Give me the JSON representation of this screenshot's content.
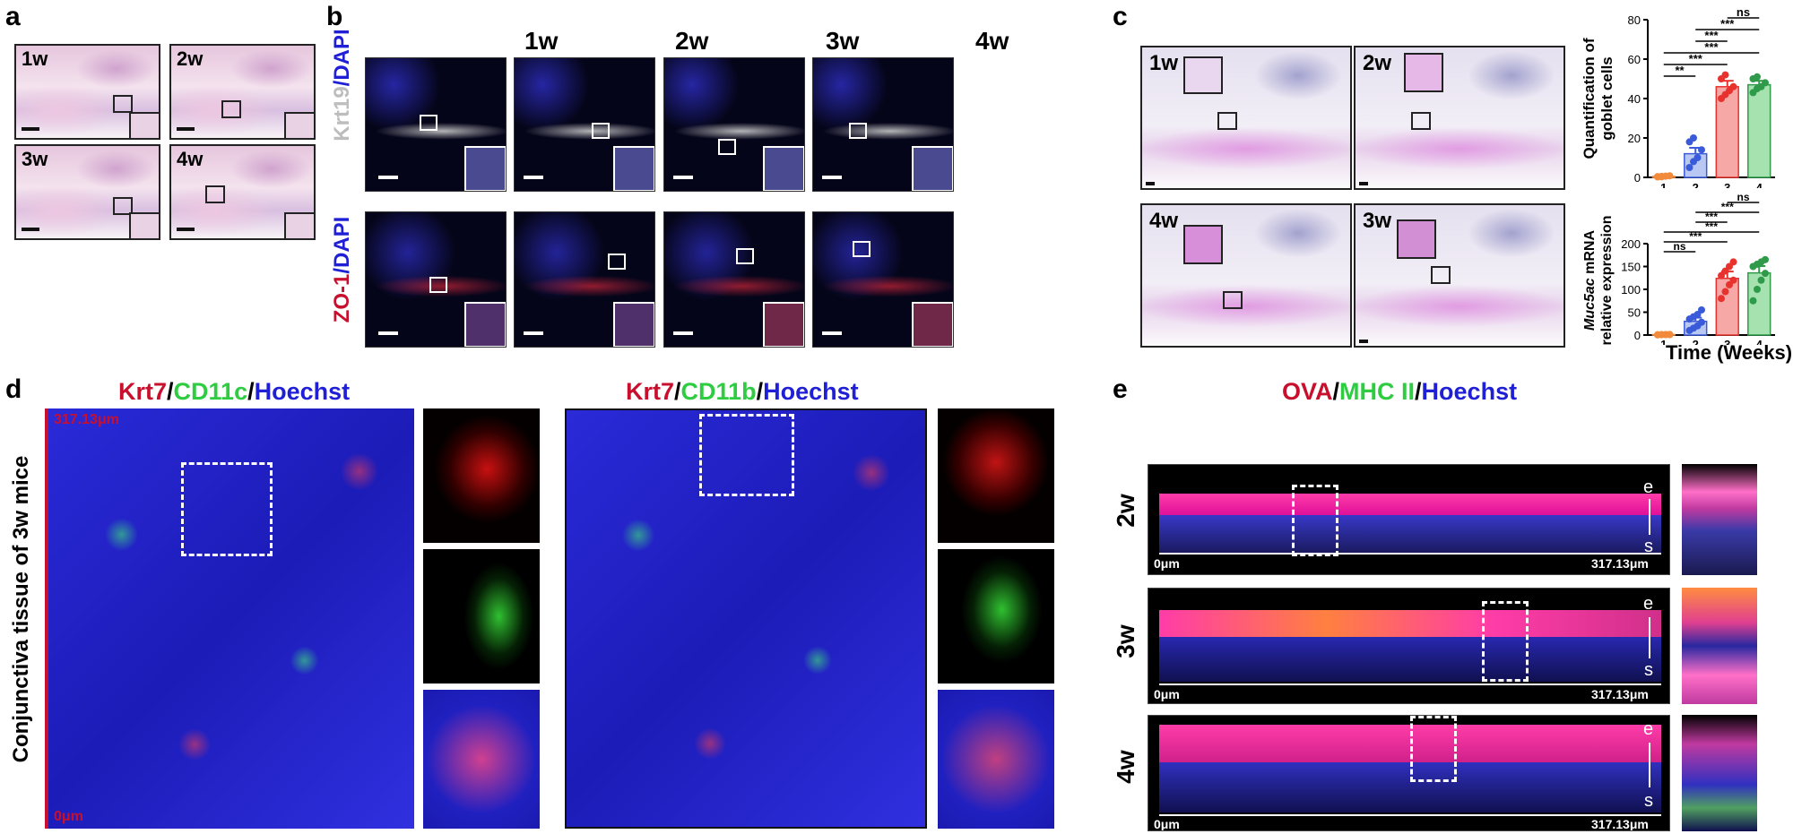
{
  "panel_a": {
    "label": "a",
    "tiles": [
      "1w",
      "2w",
      "3w",
      "4w"
    ]
  },
  "panel_b": {
    "label": "b",
    "columns": [
      "1w",
      "2w",
      "3w",
      "4w"
    ],
    "row1_stain": {
      "part1": "Krt19",
      "sep": "/",
      "part2": "DAPI"
    },
    "row2_stain": {
      "part1": "ZO-1",
      "sep": "/",
      "part2": "DAPI"
    },
    "colors": {
      "krt19": "#bdbdbd",
      "dapi": "#1f1fd6",
      "zo1": "#c8102e"
    }
  },
  "panel_c": {
    "label": "c",
    "tiles": [
      "1w",
      "2w",
      "4w",
      "3w"
    ]
  },
  "panel_d": {
    "label": "d",
    "side_label": "Conjunctiva tissue of 3w mice",
    "scale_top": "317.13μm",
    "scale_bottom": "0μm",
    "left_title": {
      "p1": "Krt7",
      "s1": "/",
      "p2": "CD11c",
      "s2": "/",
      "p3": "Hoechst"
    },
    "right_title": {
      "p1": "Krt7",
      "s1": "/",
      "p2": "CD11b",
      "s2": "/",
      "p3": "Hoechst"
    },
    "colors": {
      "red": "#c8102e",
      "green": "#2ecc40",
      "blue": "#1f1fd6"
    }
  },
  "panel_e": {
    "label": "e",
    "title": {
      "p1": "OVA",
      "s1": "/",
      "p2": "MHC II",
      "s2": "/",
      "p3": "Hoechst"
    },
    "rows": [
      {
        "week": "2w",
        "left": "0μm",
        "right": "317.13μm",
        "top": "e",
        "bottom": "s"
      },
      {
        "week": "3w",
        "left": "0μm",
        "right": "317.13μm",
        "top": "e",
        "bottom": "s"
      },
      {
        "week": "4w",
        "left": "0μm",
        "right": "317.13μm",
        "top": "e",
        "bottom": "s"
      }
    ],
    "colors": {
      "red": "#c8102e",
      "green": "#2ecc40",
      "blue": "#1f1fd6"
    }
  },
  "chart_data": [
    {
      "type": "bar",
      "ylabel": "Quantification of goblet cells",
      "xlabel": "",
      "categories": [
        "1",
        "2",
        "3",
        "4"
      ],
      "values": [
        0.5,
        12,
        46,
        47
      ],
      "errors": [
        0.3,
        3,
        3,
        2
      ],
      "ylim": [
        0,
        80
      ],
      "yticks": [
        0,
        20,
        40,
        60,
        80
      ],
      "points": [
        [
          0.2,
          0.3,
          0.6,
          0.8,
          0.4,
          0.5
        ],
        [
          5,
          8,
          10,
          14,
          18,
          20
        ],
        [
          40,
          42,
          44,
          46,
          50,
          52
        ],
        [
          43,
          45,
          46,
          48,
          50,
          51
        ]
      ],
      "colors": [
        "#f28a3c",
        "#3a5bd9",
        "#e8322e",
        "#2f9a4a"
      ],
      "fills": [
        "#fbd6b5",
        "#b9c8f2",
        "#f5a8a5",
        "#a6e2b0"
      ],
      "significance": [
        {
          "from": 1,
          "to": 2,
          "text": "**"
        },
        {
          "from": 1,
          "to": 3,
          "text": "***"
        },
        {
          "from": 1,
          "to": 4,
          "text": "***"
        },
        {
          "from": 2,
          "to": 3,
          "text": "***"
        },
        {
          "from": 2,
          "to": 4,
          "text": "***"
        },
        {
          "from": 3,
          "to": 4,
          "text": "ns"
        }
      ]
    },
    {
      "type": "bar",
      "ylabel_italic": "Muc5ac",
      "ylabel_rest": " mRNA",
      "ylabel_line2": "relative expression",
      "xlabel": "Time (Weeks)",
      "categories": [
        "1",
        "2",
        "3",
        "4"
      ],
      "values": [
        1,
        30,
        124,
        136
      ],
      "errors": [
        0.5,
        8,
        15,
        15
      ],
      "ylim": [
        0,
        200
      ],
      "yticks": [
        0,
        50,
        100,
        150,
        200
      ],
      "points": [
        [
          0.5,
          0.8,
          1,
          1.2,
          0.6,
          1,
          1.1,
          0.9
        ],
        [
          10,
          15,
          20,
          28,
          35,
          40,
          45,
          55
        ],
        [
          80,
          95,
          110,
          120,
          130,
          140,
          150,
          160
        ],
        [
          75,
          100,
          120,
          135,
          150,
          155,
          160,
          165
        ]
      ],
      "colors": [
        "#f28a3c",
        "#3a5bd9",
        "#e8322e",
        "#2f9a4a"
      ],
      "fills": [
        "#fbd6b5",
        "#b9c8f2",
        "#f5a8a5",
        "#a6e2b0"
      ],
      "significance": [
        {
          "from": 1,
          "to": 2,
          "text": "ns"
        },
        {
          "from": 1,
          "to": 3,
          "text": "***"
        },
        {
          "from": 1,
          "to": 4,
          "text": "***"
        },
        {
          "from": 2,
          "to": 3,
          "text": "***"
        },
        {
          "from": 2,
          "to": 4,
          "text": "***"
        },
        {
          "from": 3,
          "to": 4,
          "text": "ns"
        }
      ]
    }
  ]
}
